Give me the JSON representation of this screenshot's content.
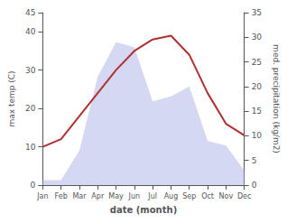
{
  "chart_data": {
    "type": "line",
    "xlabel": "date (month)",
    "ylabel": "max temp (C)",
    "y2label": "med. precipitation (kg/m2)",
    "categories": [
      "Jan",
      "Feb",
      "Mar",
      "Apr",
      "May",
      "Jun",
      "Jul",
      "Aug",
      "Sep",
      "Oct",
      "Nov",
      "Dec"
    ],
    "series": [
      {
        "type": "area",
        "color": "#b0b8e8",
        "axis": "y2",
        "values": [
          1,
          1,
          7,
          22,
          29,
          28,
          17,
          18,
          20,
          9,
          8,
          3
        ]
      },
      {
        "type": "line",
        "color": "#b03030",
        "values": [
          10,
          12,
          18,
          24,
          30,
          35,
          38,
          39,
          34,
          24,
          16,
          13
        ]
      }
    ],
    "ylim": [
      0,
      45
    ],
    "yticks": [
      0,
      10,
      20,
      30,
      40
    ],
    "y2lim": [
      0,
      35
    ],
    "y2ticks": [
      0,
      5,
      10,
      15,
      20,
      25,
      30,
      35
    ],
    "grid": false
  }
}
